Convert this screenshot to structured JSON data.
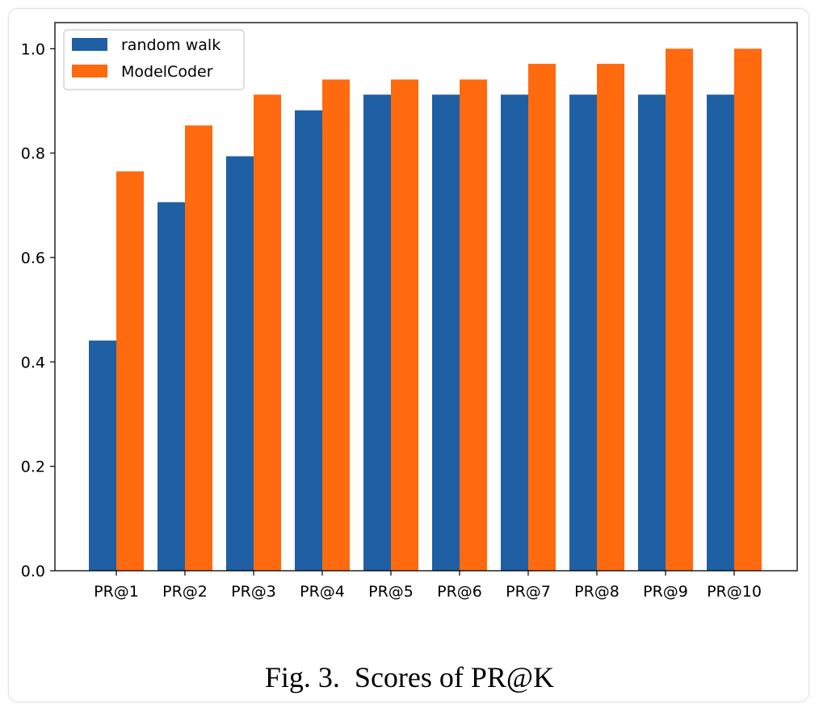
{
  "caption": "Fig. 3.  Scores of PR@K",
  "chart_data": {
    "type": "bar",
    "title": "",
    "xlabel": "",
    "ylabel": "",
    "ylim": [
      0,
      1.05
    ],
    "yticks": [
      0.0,
      0.2,
      0.4,
      0.6,
      0.8,
      1.0
    ],
    "ytick_labels": [
      "0.0",
      "0.2",
      "0.4",
      "0.6",
      "0.8",
      "1.0"
    ],
    "grid": false,
    "legend_position": "top-left",
    "categories": [
      "PR@1",
      "PR@2",
      "PR@3",
      "PR@4",
      "PR@5",
      "PR@6",
      "PR@7",
      "PR@8",
      "PR@9",
      "PR@10"
    ],
    "series": [
      {
        "name": "random walk",
        "color": "#1f5fa3",
        "values": [
          0.441,
          0.706,
          0.794,
          0.882,
          0.912,
          0.912,
          0.912,
          0.912,
          0.912,
          0.912
        ]
      },
      {
        "name": "ModelCoder",
        "color": "#ff6a0e",
        "values": [
          0.765,
          0.853,
          0.912,
          0.941,
          0.941,
          0.941,
          0.971,
          0.971,
          1.0,
          1.0
        ]
      }
    ]
  }
}
